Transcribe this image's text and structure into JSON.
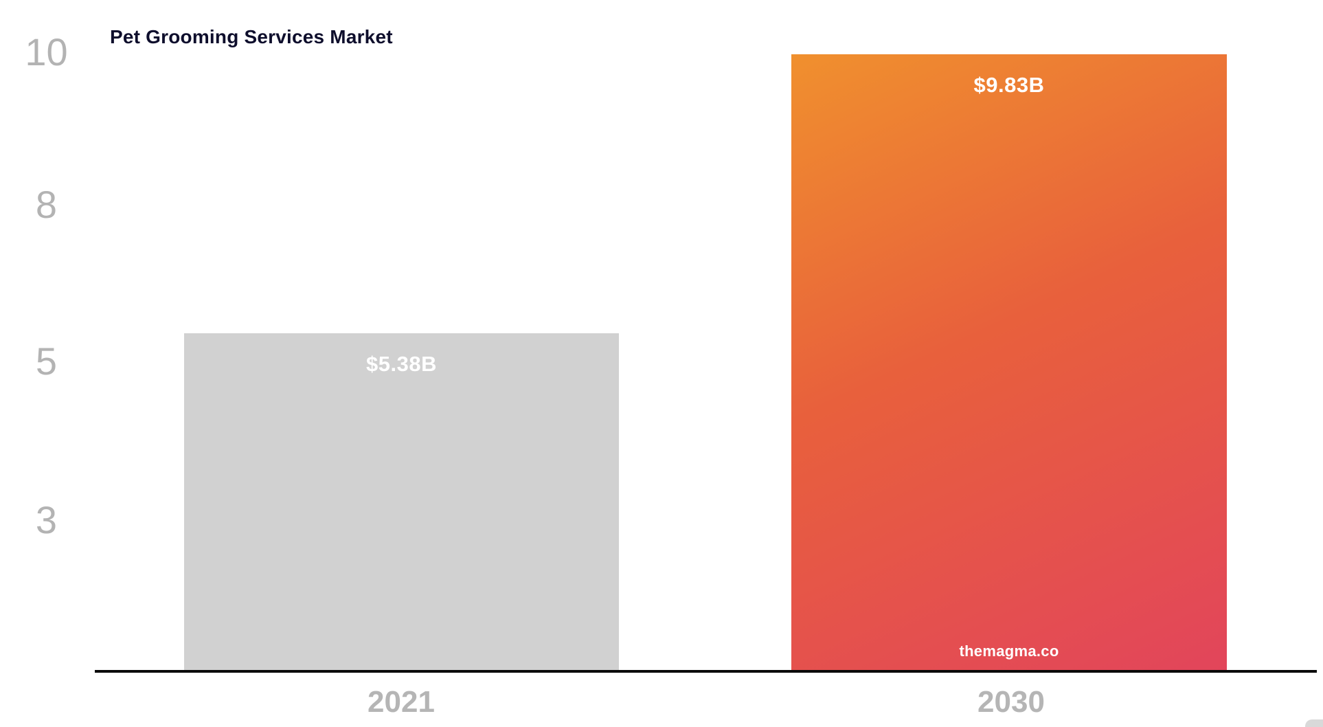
{
  "chart": {
    "title": "Pet Grooming Services Market",
    "watermark": "themagma.co"
  },
  "chart_data": {
    "type": "bar",
    "title": "Pet Grooming Services Market",
    "categories": [
      "2021",
      "2030"
    ],
    "values": [
      5.38,
      9.83
    ],
    "value_labels": [
      "$5.38B",
      "$9.83B"
    ],
    "unit": "USD billions",
    "xlabel": "",
    "ylabel": "",
    "ylim": [
      0,
      9.83
    ],
    "y_ticks_top_to_bottom": [
      "10",
      "8",
      "5",
      "3"
    ],
    "grid": false,
    "legend": "none",
    "watermark": "themagma.co",
    "colors": {
      "bar_2021": "#d1d1d1",
      "bar_2030_gradient": [
        "#f0902e",
        "#e8603c",
        "#e2455b"
      ],
      "title_text": "#0e0e2c",
      "axis_line": "#0a0a0a",
      "tick_text": "#b3b3b3",
      "category_text": "#b5b5b5",
      "value_label_text": "#ffffff"
    }
  }
}
